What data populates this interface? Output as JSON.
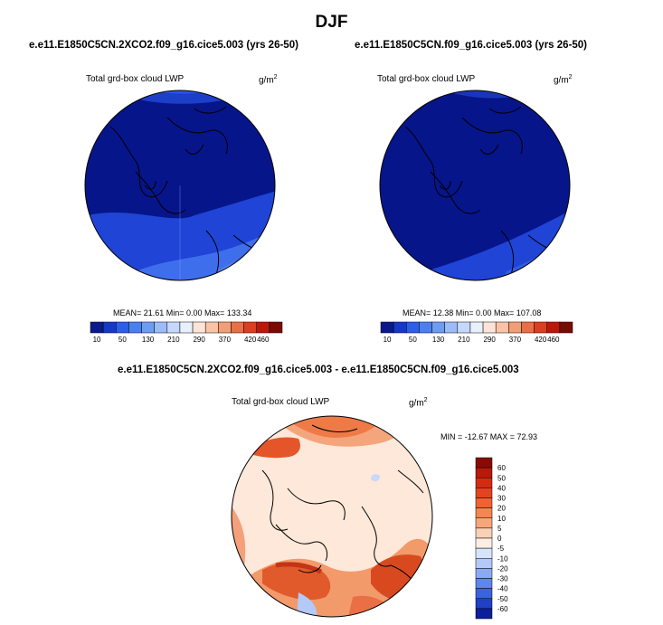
{
  "figure": {
    "title": "DJF"
  },
  "panels": [
    {
      "case": "e.e11.E1850C5CN.2XCO2.f09_g16.cice5.003 (yrs 26-50)",
      "variable": "Total grd-box cloud LWP",
      "units": "g/m",
      "units_sup": "2",
      "stats_text": "MEAN= 21.61  Min=  0.00  Max= 133.34",
      "stats": {
        "mean": 21.61,
        "min": 0.0,
        "max": 133.34
      }
    },
    {
      "case": "e.e11.E1850C5CN.f09_g16.cice5.003 (yrs 26-50)",
      "variable": "Total grd-box cloud LWP",
      "units": "g/m",
      "units_sup": "2",
      "stats_text": "MEAN= 12.38  Min=  0.00  Max= 107.08",
      "stats": {
        "mean": 12.38,
        "min": 0.0,
        "max": 107.08
      }
    },
    {
      "case": "e.e11.E1850C5CN.2XCO2.f09_g16.cice5.003 - e.e11.E1850C5CN.f09_g16.cice5.003",
      "variable": "Total grd-box cloud LWP",
      "units": "g/m",
      "units_sup": "2",
      "stats_text": "MIN = -12.67 MAX =  72.93",
      "stats": {
        "min": -12.67,
        "max": 72.93
      }
    }
  ],
  "chart_data": [
    {
      "type": "heatmap",
      "projection": "polar-stereographic-north",
      "title": "e.e11.E1850C5CN.2XCO2.f09_g16.cice5.003 (yrs 26-50)",
      "colorbar": {
        "orientation": "horizontal",
        "levels": [
          10,
          50,
          130,
          210,
          290,
          370,
          420,
          460
        ],
        "colors": [
          "#0a1a8c",
          "#1638c8",
          "#2e5ee6",
          "#4a7ff2",
          "#6e9cf5",
          "#9bbcf8",
          "#c5d8fb",
          "#e9f0fd",
          "#fde4d6",
          "#f8c4a5",
          "#f39e77",
          "#ea6f45",
          "#d9401e",
          "#b8190b",
          "#7a0b04"
        ]
      },
      "stats": {
        "mean": 21.61,
        "min": 0.0,
        "max": 133.34
      }
    },
    {
      "type": "heatmap",
      "projection": "polar-stereographic-north",
      "title": "e.e11.E1850C5CN.f09_g16.cice5.003 (yrs 26-50)",
      "colorbar": {
        "orientation": "horizontal",
        "levels": [
          10,
          50,
          130,
          210,
          290,
          370,
          420,
          460
        ],
        "colors": [
          "#0a1a8c",
          "#1638c8",
          "#2e5ee6",
          "#4a7ff2",
          "#6e9cf5",
          "#9bbcf8",
          "#c5d8fb",
          "#e9f0fd",
          "#fde4d6",
          "#f8c4a5",
          "#f39e77",
          "#ea6f45",
          "#d9401e",
          "#b8190b",
          "#7a0b04"
        ]
      },
      "stats": {
        "mean": 12.38,
        "min": 0.0,
        "max": 107.08
      }
    },
    {
      "type": "heatmap",
      "projection": "polar-stereographic-north",
      "title": "e.e11.E1850C5CN.2XCO2.f09_g16.cice5.003 - e.e11.E1850C5CN.f09_g16.cice5.003",
      "colorbar": {
        "orientation": "vertical",
        "levels": [
          60,
          50,
          40,
          30,
          20,
          10,
          5,
          0,
          -5,
          -10,
          -20,
          -30,
          -40,
          -50,
          -60
        ],
        "colors_top_to_bottom": [
          "#8c0a05",
          "#b8190b",
          "#d42c12",
          "#e5431f",
          "#ef6333",
          "#f4864f",
          "#f7a67a",
          "#fad0b6",
          "#fdeee3",
          "#d8e4fb",
          "#b3c9f8",
          "#8aaaf3",
          "#5f86ec",
          "#3a63e0",
          "#2140c4",
          "#0d1e9a"
        ]
      },
      "stats": {
        "min": -12.67,
        "max": 72.93
      }
    }
  ],
  "colors": {
    "ocean_dark": "#07158a",
    "blue_mid": "#1f44d6",
    "blue_light": "#3f6eec",
    "diff_base": "#fde8da",
    "diff_orange": "#f08a58",
    "diff_red": "#e05a2c",
    "diff_deep": "#c23415"
  }
}
